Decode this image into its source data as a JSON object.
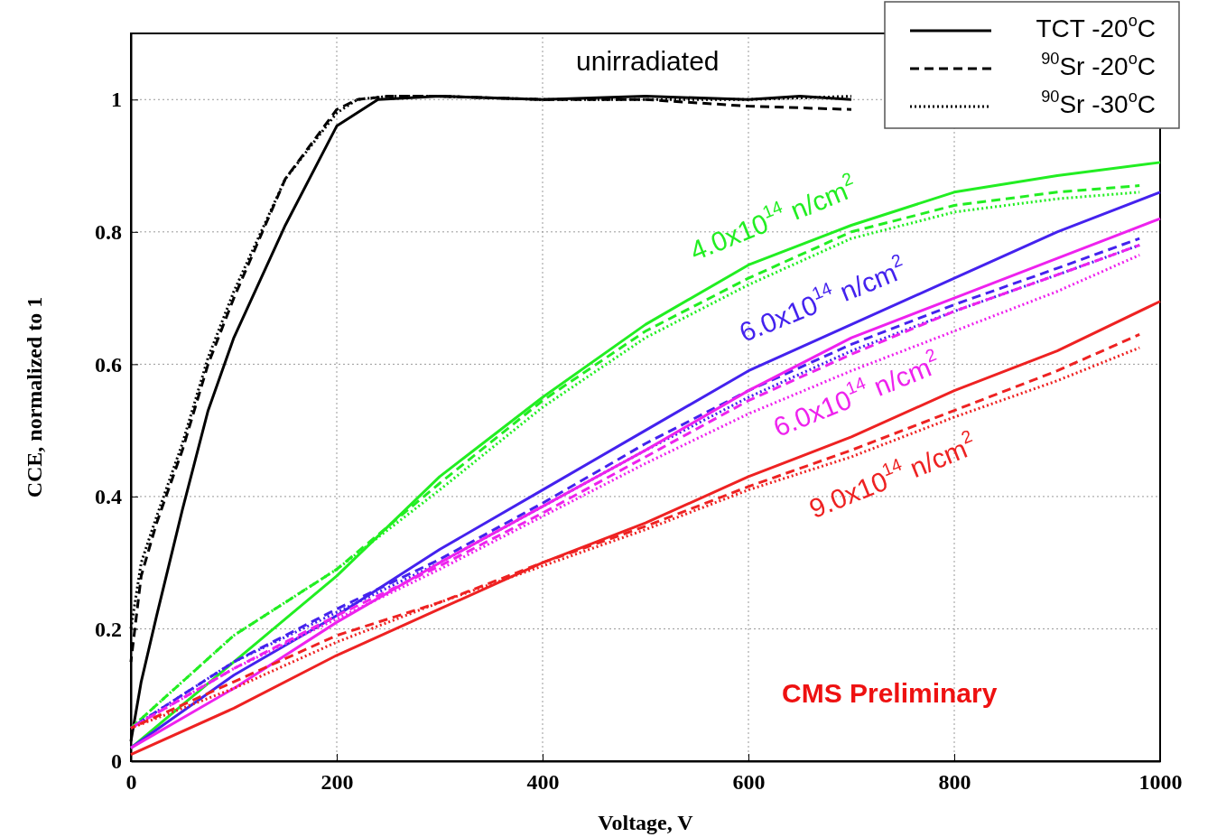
{
  "chart_data": {
    "type": "line",
    "xlabel": "Voltage, V",
    "ylabel": "CCE, normalized to 1",
    "xlim": [
      0,
      1000
    ],
    "ylim": [
      0,
      1.1
    ],
    "xticks": [
      0,
      200,
      400,
      600,
      800,
      1000
    ],
    "yticks": [
      0,
      0.2,
      0.4,
      0.6,
      0.8,
      1
    ],
    "grid": true,
    "legend": "top right",
    "series": [
      {
        "name": "TCT -20$^{o}$C",
        "color": "#000000",
        "line_style": "solid",
        "x": [
          0,
          10,
          25,
          50,
          75,
          100,
          150,
          200,
          240,
          300,
          400,
          500,
          600,
          650,
          700
        ],
        "values": [
          0.03,
          0.12,
          0.22,
          0.38,
          0.53,
          0.64,
          0.81,
          0.96,
          1.0,
          1.005,
          1.0,
          1.005,
          1.0,
          1.005,
          1.0
        ]
      },
      {
        "name": "$^{90}$Sr -20$^{o}$C",
        "color": "#000000",
        "line_style": "dashed",
        "x": [
          0,
          10,
          25,
          50,
          75,
          100,
          150,
          200,
          220,
          250,
          300,
          400,
          500,
          600,
          700
        ],
        "values": [
          0.15,
          0.28,
          0.36,
          0.47,
          0.6,
          0.7,
          0.88,
          0.985,
          1.0,
          1.005,
          1.005,
          1.0,
          1.0,
          0.99,
          0.985
        ]
      },
      {
        "name": "$^{90}$Sr -30$^{o}$C",
        "color": "#000000",
        "line_style": "dotted",
        "x": [
          0,
          10,
          25,
          50,
          75,
          100,
          150,
          200,
          220,
          250,
          300,
          400,
          500,
          600,
          700
        ],
        "values": [
          0.2,
          0.3,
          0.37,
          0.48,
          0.61,
          0.71,
          0.88,
          0.98,
          1.0,
          1.005,
          1.005,
          1.0,
          1.0,
          1.0,
          1.005
        ]
      },
      {
        "color": "#22ee22",
        "line_style": "solid",
        "x": [
          0,
          100,
          200,
          300,
          400,
          500,
          600,
          700,
          800,
          900,
          1000
        ],
        "values": [
          0.02,
          0.15,
          0.28,
          0.43,
          0.55,
          0.66,
          0.75,
          0.81,
          0.86,
          0.885,
          0.905
        ]
      },
      {
        "color": "#22ee22",
        "line_style": "dashed",
        "x": [
          0,
          100,
          200,
          300,
          400,
          500,
          600,
          700,
          800,
          900,
          980
        ],
        "values": [
          0.05,
          0.19,
          0.29,
          0.42,
          0.545,
          0.65,
          0.73,
          0.8,
          0.84,
          0.86,
          0.87
        ]
      },
      {
        "color": "#22ee22",
        "line_style": "dotted",
        "x": [
          0,
          100,
          200,
          300,
          400,
          500,
          600,
          700,
          800,
          900,
          980
        ],
        "values": [
          0.05,
          0.19,
          0.29,
          0.41,
          0.535,
          0.64,
          0.72,
          0.79,
          0.83,
          0.85,
          0.86
        ]
      },
      {
        "color": "#4422ee",
        "line_style": "solid",
        "x": [
          0,
          100,
          200,
          300,
          400,
          500,
          600,
          700,
          800,
          900,
          1000
        ],
        "values": [
          0.02,
          0.13,
          0.22,
          0.32,
          0.41,
          0.5,
          0.59,
          0.66,
          0.73,
          0.8,
          0.86
        ]
      },
      {
        "color": "#4422ee",
        "line_style": "dashed",
        "x": [
          0,
          100,
          200,
          300,
          400,
          500,
          600,
          700,
          800,
          900,
          980
        ],
        "values": [
          0.05,
          0.15,
          0.23,
          0.305,
          0.39,
          0.48,
          0.56,
          0.63,
          0.69,
          0.745,
          0.79
        ]
      },
      {
        "color": "#4422ee",
        "line_style": "dotted",
        "x": [
          0,
          100,
          200,
          300,
          400,
          500,
          600,
          700,
          800,
          900,
          980
        ],
        "values": [
          0.05,
          0.15,
          0.225,
          0.3,
          0.385,
          0.47,
          0.55,
          0.62,
          0.68,
          0.735,
          0.78
        ]
      },
      {
        "color": "#ee22ee",
        "line_style": "solid",
        "x": [
          0,
          100,
          200,
          300,
          400,
          500,
          600,
          700,
          800,
          900,
          1000
        ],
        "values": [
          0.02,
          0.11,
          0.21,
          0.3,
          0.385,
          0.47,
          0.56,
          0.64,
          0.7,
          0.76,
          0.82
        ]
      },
      {
        "color": "#ee22ee",
        "line_style": "dashed",
        "x": [
          0,
          100,
          200,
          300,
          400,
          500,
          600,
          700,
          800,
          900,
          980
        ],
        "values": [
          0.05,
          0.14,
          0.22,
          0.295,
          0.375,
          0.46,
          0.545,
          0.615,
          0.68,
          0.735,
          0.78
        ]
      },
      {
        "color": "#ee22ee",
        "line_style": "dotted",
        "x": [
          0,
          100,
          200,
          300,
          400,
          500,
          600,
          700,
          800,
          900,
          980
        ],
        "values": [
          0.05,
          0.14,
          0.215,
          0.29,
          0.37,
          0.45,
          0.525,
          0.59,
          0.65,
          0.71,
          0.765
        ]
      },
      {
        "color": "#ee2222",
        "line_style": "solid",
        "x": [
          0,
          100,
          200,
          300,
          400,
          500,
          600,
          700,
          800,
          900,
          1000
        ],
        "values": [
          0.01,
          0.08,
          0.16,
          0.23,
          0.3,
          0.36,
          0.43,
          0.49,
          0.56,
          0.62,
          0.695
        ]
      },
      {
        "color": "#ee2222",
        "line_style": "dashed",
        "x": [
          0,
          100,
          200,
          300,
          400,
          500,
          600,
          700,
          800,
          900,
          980
        ],
        "values": [
          0.05,
          0.12,
          0.19,
          0.24,
          0.3,
          0.355,
          0.415,
          0.47,
          0.53,
          0.59,
          0.645
        ]
      },
      {
        "color": "#ee2222",
        "line_style": "dotted",
        "x": [
          0,
          100,
          200,
          300,
          400,
          500,
          600,
          700,
          800,
          900,
          980
        ],
        "values": [
          0.05,
          0.11,
          0.18,
          0.24,
          0.295,
          0.35,
          0.41,
          0.46,
          0.52,
          0.575,
          0.625
        ]
      }
    ],
    "annotations": [
      "unirradiated",
      "4.0x10$^{14}$ n/cm$^{2}$",
      "6.0x10$^{14}$ n/cm$^{2}$",
      "6.0x10$^{14}$ n/cm$^{2}$",
      "9.0x10$^{14}$ n/cm$^{2}$",
      "CMS Preliminary"
    ]
  }
}
